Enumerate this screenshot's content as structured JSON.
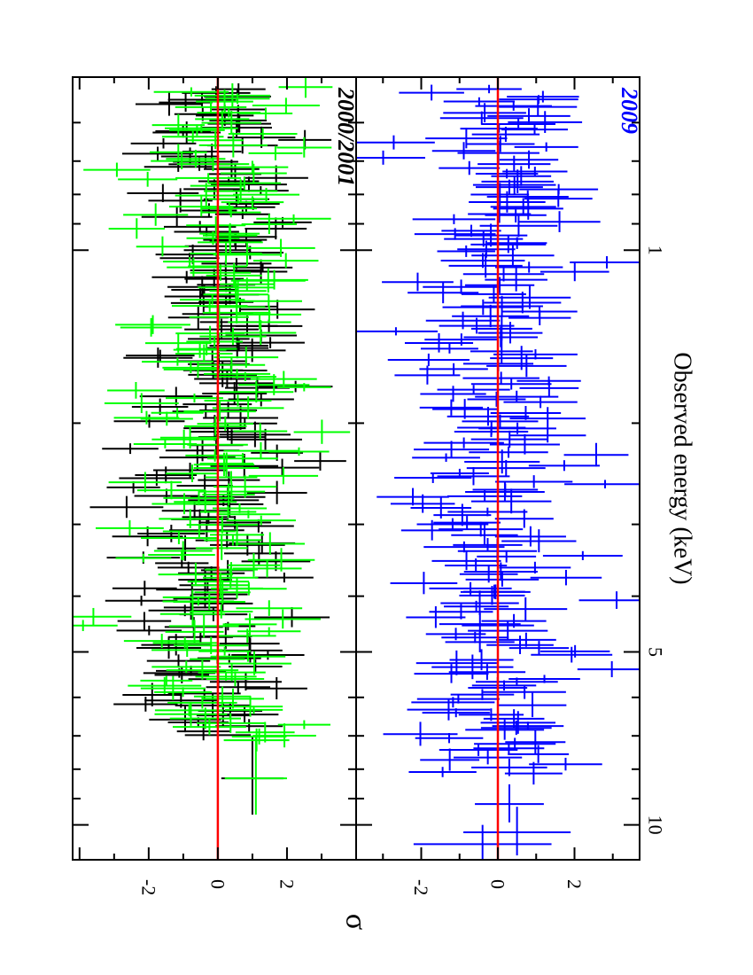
{
  "chart_data": {
    "type": "scatter",
    "orientation": "rotated-90",
    "shared_x_axis": {
      "label": "Observed energy (keV)",
      "scale": "log",
      "range": [
        0.5,
        11.5
      ],
      "major_ticks": [
        1,
        5,
        10
      ],
      "major_tick_labels": [
        "1",
        "5",
        "10"
      ],
      "minor_ticks": [
        0.6,
        0.7,
        0.8,
        0.9,
        2,
        3,
        4,
        6,
        7,
        8,
        9
      ]
    },
    "y_axis_label": "σ",
    "panels": [
      {
        "epoch_label": "2000/2001",
        "epoch_color": "#000000",
        "y_range": [
          -4.2,
          4.0
        ],
        "y_ticks": [
          2,
          0,
          -2
        ],
        "y_tick_labels": [
          "2",
          "0",
          "-2"
        ],
        "zero_line_color": "#ff0000",
        "series": [
          {
            "name": "2000",
            "color": "#000000",
            "seed": 17,
            "points_count": 190,
            "x_range": [
              0.52,
              7.0
            ],
            "y_sigma": 1.05,
            "outliers": [
              {
                "x": 8.3,
                "y": 1.0,
                "xerr": 1.3,
                "yerr": 0.9
              }
            ]
          },
          {
            "name": "2001",
            "color": "#00ff00",
            "seed": 53,
            "points_count": 200,
            "x_range": [
              0.52,
              7.2
            ],
            "y_sigma": 1.1,
            "outliers": [
              {
                "x": 8.3,
                "y": 1.1,
                "xerr": 1.3,
                "yerr": 0.9
              },
              {
                "x": 4.5,
                "y": -3.9,
                "xerr": 0.1,
                "yerr": 1.0
              }
            ]
          }
        ]
      },
      {
        "epoch_label": "2009",
        "epoch_color": "#0000ff",
        "y_range": [
          -3.7,
          3.7
        ],
        "y_ticks": [
          2,
          0,
          -2
        ],
        "y_tick_labels": [
          "2",
          "0",
          "-2"
        ],
        "zero_line_color": "#ff0000",
        "series": [
          {
            "name": "2009",
            "color": "#0000ff",
            "seed": 91,
            "points_count": 210,
            "x_range": [
              0.52,
              8.2
            ],
            "y_sigma": 1.1,
            "outliers": [
              {
                "x": 10.3,
                "y": 0.5,
                "xerr": 1.0,
                "yerr": 1.4
              },
              {
                "x": 10.8,
                "y": -0.4,
                "xerr": 0.8,
                "yerr": 1.8
              },
              {
                "x": 9.2,
                "y": 0.3,
                "xerr": 0.7,
                "yerr": 0.9
              }
            ]
          }
        ]
      }
    ]
  }
}
